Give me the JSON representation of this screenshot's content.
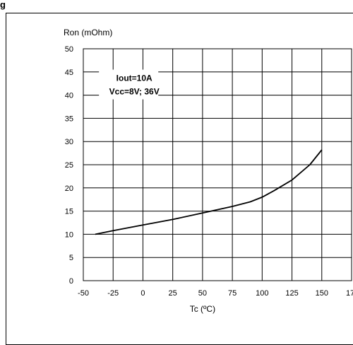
{
  "figure": {
    "corner_glyph": "g"
  },
  "chart_data": {
    "type": "line",
    "ylabel": "Ron (mOhm)",
    "xlabel": "Tc (ºC)",
    "xlim": [
      -50,
      175
    ],
    "ylim": [
      0,
      50
    ],
    "x_ticks": [
      "-50",
      "-25",
      "0",
      "25",
      "50",
      "75",
      "100",
      "125",
      "150",
      "17"
    ],
    "y_ticks": [
      "0",
      "5",
      "10",
      "15",
      "20",
      "25",
      "30",
      "35",
      "40",
      "45",
      "50"
    ],
    "grid": true,
    "annotation": [
      "Iout=10A",
      "Vcc=8V; 36V"
    ],
    "series": [
      {
        "x": [
          -40,
          -25,
          0,
          25,
          50,
          75,
          90,
          100,
          110,
          125,
          140,
          150
        ],
        "y": [
          10.0,
          10.8,
          12.0,
          13.2,
          14.6,
          16.0,
          17.0,
          18.0,
          19.4,
          21.7,
          25.0,
          28.2
        ]
      }
    ],
    "colors": {
      "line": "#000000",
      "grid": "#000000"
    }
  }
}
